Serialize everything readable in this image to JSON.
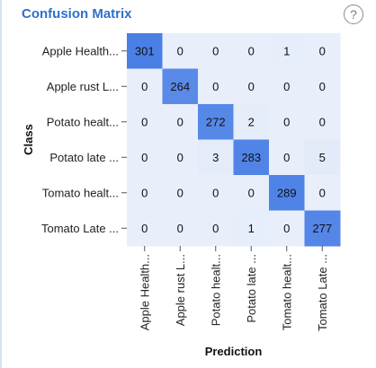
{
  "panel": {
    "title": "Confusion Matrix",
    "help_glyph": "?",
    "help_icon": "question-circle-icon"
  },
  "colors": {
    "title": "#2f6fcf",
    "cell_low": "#e8effb",
    "cell_high": "#4a7fe6"
  },
  "chart_data": {
    "type": "heatmap",
    "title": "Confusion Matrix",
    "xlabel": "Prediction",
    "ylabel": "Class",
    "row_labels": [
      "Apple Health...",
      "Apple rust L...",
      "Potato healt...",
      "Potato late ...",
      "Tomato healt...",
      "Tomato Late ..."
    ],
    "col_labels": [
      "Apple Health...",
      "Apple rust L...",
      "Potato healt...",
      "Potato late ...",
      "Tomato healt...",
      "Tomato Late ..."
    ],
    "values": [
      [
        301,
        0,
        0,
        0,
        1,
        0
      ],
      [
        0,
        264,
        0,
        0,
        0,
        0
      ],
      [
        0,
        0,
        272,
        2,
        0,
        0
      ],
      [
        0,
        0,
        3,
        283,
        0,
        5
      ],
      [
        0,
        0,
        0,
        0,
        289,
        0
      ],
      [
        0,
        0,
        0,
        1,
        0,
        277
      ]
    ]
  }
}
